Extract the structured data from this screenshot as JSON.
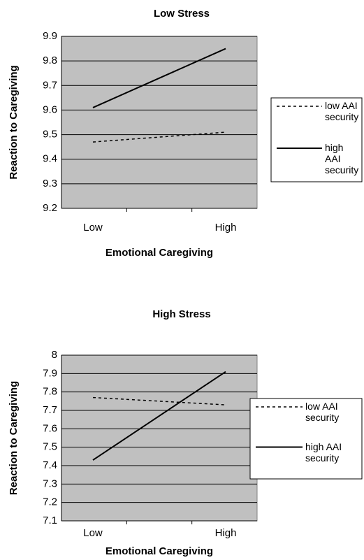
{
  "chart_data": [
    {
      "type": "line",
      "title": "Low Stress",
      "x_label": "Emotional Caregiving",
      "y_label": "Reaction to Caregiving",
      "categories": [
        "Low",
        "High"
      ],
      "series": [
        {
          "name": "low AAI security",
          "color": "#000000",
          "dash": true,
          "values": [
            9.47,
            9.51
          ]
        },
        {
          "name": "high AAI security",
          "color": "#000000",
          "dash": false,
          "values": [
            9.61,
            9.85
          ]
        }
      ],
      "ylim": [
        9.2,
        9.9
      ],
      "yticks": [
        9.2,
        9.3,
        9.4,
        9.5,
        9.6,
        9.7,
        9.8,
        9.9
      ],
      "grid": true,
      "legend": "right"
    },
    {
      "type": "line",
      "title": "High Stress",
      "x_label": "Emotional Caregiving",
      "y_label": "Reaction to Caregiving",
      "categories": [
        "Low",
        "High"
      ],
      "series": [
        {
          "name": "low AAI security",
          "color": "#000000",
          "dash": true,
          "values": [
            7.77,
            7.73
          ]
        },
        {
          "name": "high AAI security",
          "color": "#000000",
          "dash": false,
          "values": [
            7.43,
            7.91
          ]
        }
      ],
      "ylim": [
        7.1,
        8
      ],
      "yticks": [
        7.1,
        7.2,
        7.3,
        7.4,
        7.5,
        7.6,
        7.7,
        7.8,
        7.9,
        8
      ],
      "grid": true,
      "legend": "right"
    }
  ]
}
